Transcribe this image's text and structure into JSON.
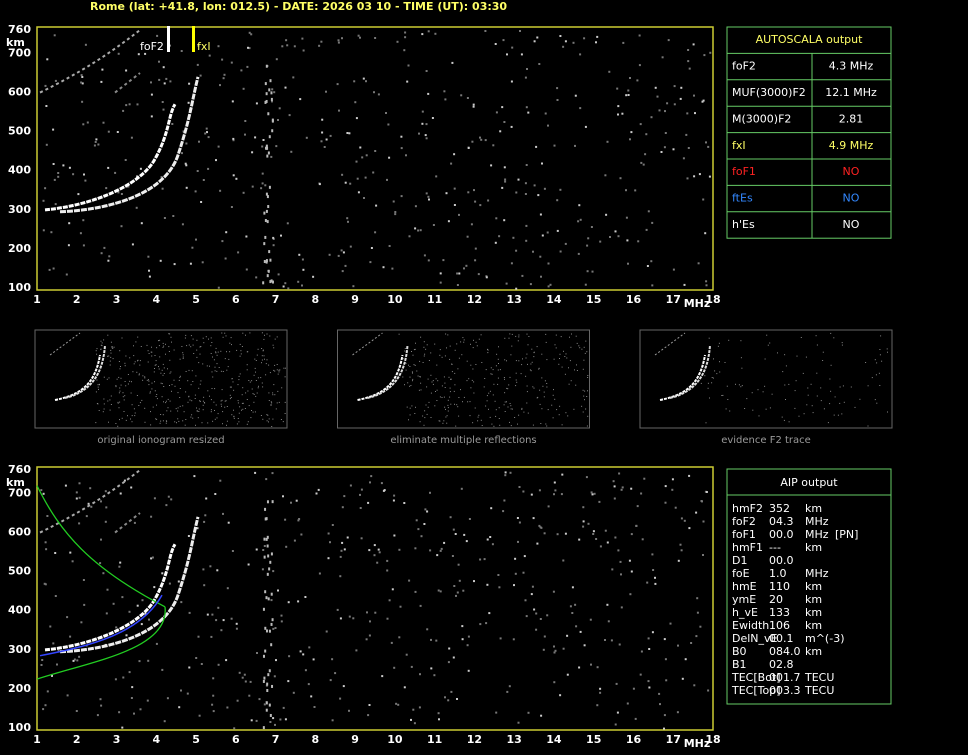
{
  "header": {
    "title": "Rome (lat: +41.8, lon: 012.5) - DATE: 2026 03 10 - TIME (UT): 03:30"
  },
  "ionogram_axes": {
    "x_ticks": [
      1,
      2,
      3,
      4,
      5,
      6,
      7,
      8,
      9,
      10,
      11,
      12,
      13,
      14,
      15,
      16,
      17,
      18
    ],
    "x_unit": "MHz",
    "y_ticks": [
      100,
      200,
      300,
      400,
      500,
      600,
      700,
      760
    ],
    "y_unit": "km"
  },
  "markers": {
    "foF2": "foF2",
    "fxI": "fxI"
  },
  "autoscala": {
    "title": "AUTOSCALA output",
    "rows": [
      [
        "foF2",
        "4.3 MHz"
      ],
      [
        "MUF(3000)F2",
        "12.1 MHz"
      ],
      [
        "M(3000)F2",
        "2.81"
      ],
      [
        "fxI",
        "4.9 MHz"
      ],
      [
        "foF1",
        "NO"
      ],
      [
        "ftEs",
        "NO"
      ],
      [
        "h'Es",
        "NO"
      ]
    ]
  },
  "thumbnails": [
    "original ionogram resized",
    "eliminate multiple reflections",
    "evidence F2 trace"
  ],
  "aip": {
    "title": "AIP output",
    "rows": [
      [
        "hmF2",
        "352",
        "km"
      ],
      [
        "foF2",
        "04.3",
        "MHz"
      ],
      [
        "foF1",
        "00.0",
        "MHz",
        "[PN]"
      ],
      [
        "hmF1",
        "---",
        "km"
      ],
      [
        "D1",
        "00.0"
      ],
      [
        "foE",
        "1.0",
        "MHz"
      ],
      [
        "hmE",
        "110",
        "km"
      ],
      [
        "ymE",
        "20",
        "km"
      ],
      [
        "h_vE",
        "133",
        "km"
      ],
      [
        "Ewidth",
        "106",
        "km"
      ],
      [
        "DelN_vE",
        "00.1",
        "m^(-3)"
      ],
      [
        "B0",
        "084.0",
        "km"
      ],
      [
        "B1",
        "02.8"
      ],
      [
        "TEC[Bot]",
        "001.7",
        "TECU"
      ],
      [
        "TEC[Top]",
        "003.3",
        "TECU"
      ]
    ]
  }
}
